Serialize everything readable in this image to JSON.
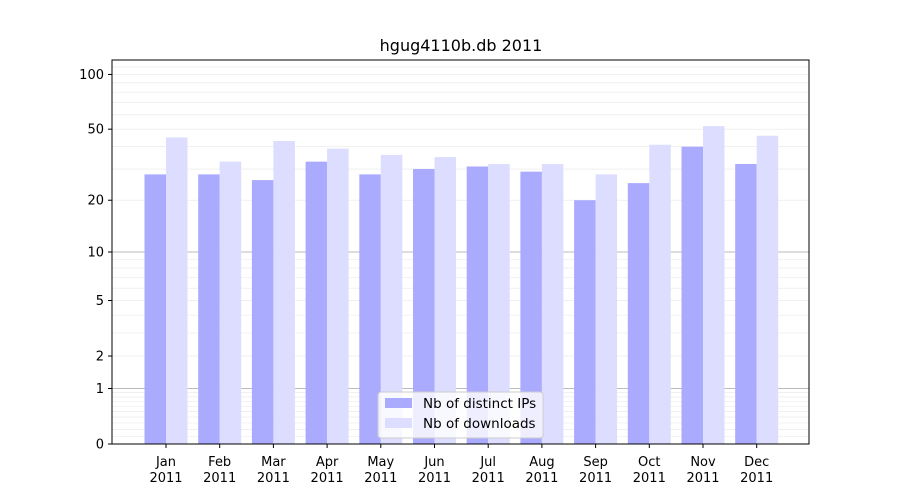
{
  "chart_data": {
    "type": "bar",
    "title": "hgug4110b.db 2011",
    "xlabel": "",
    "ylabel": "",
    "yscale": "log(1+y)",
    "ylim": [
      0,
      120
    ],
    "yticks": [
      0,
      1,
      2,
      5,
      10,
      20,
      50,
      100
    ],
    "grid": "horizontal",
    "legend_position": "bottom-center",
    "categories": [
      [
        "Jan",
        "2011"
      ],
      [
        "Feb",
        "2011"
      ],
      [
        "Mar",
        "2011"
      ],
      [
        "Apr",
        "2011"
      ],
      [
        "May",
        "2011"
      ],
      [
        "Jun",
        "2011"
      ],
      [
        "Jul",
        "2011"
      ],
      [
        "Aug",
        "2011"
      ],
      [
        "Sep",
        "2011"
      ],
      [
        "Oct",
        "2011"
      ],
      [
        "Nov",
        "2011"
      ],
      [
        "Dec",
        "2011"
      ]
    ],
    "series": [
      {
        "name": "Nb of distinct IPs",
        "color": "#aaaaff",
        "values": [
          28,
          28,
          26,
          33,
          28,
          30,
          31,
          29,
          20,
          25,
          40,
          32
        ]
      },
      {
        "name": "Nb of downloads",
        "color": "#ddddff",
        "values": [
          45,
          33,
          43,
          39,
          36,
          35,
          32,
          32,
          28,
          41,
          52,
          46
        ]
      }
    ]
  }
}
